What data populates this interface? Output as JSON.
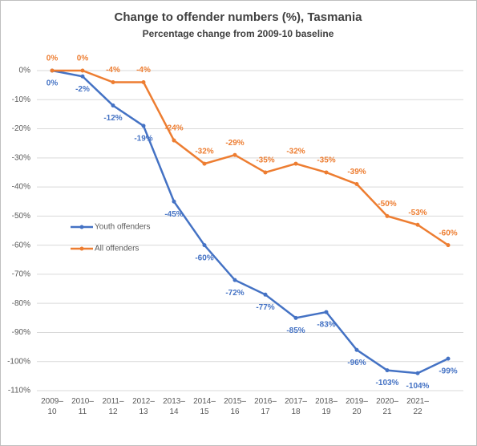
{
  "chart_data": {
    "type": "line",
    "title": "Change to offender numbers (%), Tasmania",
    "subtitle": "Percentage change from 2009-10 baseline",
    "categories": [
      "2009–10",
      "2010–11",
      "2011–12",
      "2012–13",
      "2013–14",
      "2014–15",
      "2015–16",
      "2016–17",
      "2017–18",
      "2018–19",
      "2019–20",
      "2020–21",
      "2021–22",
      null
    ],
    "series": [
      {
        "name": "Youth offenders",
        "color": "#4472c4",
        "values": [
          0,
          -2,
          -12,
          -19,
          -45,
          -60,
          -72,
          -77,
          -85,
          -83,
          -96,
          -103,
          -104,
          -99
        ],
        "value_labels": [
          "0%",
          "-2%",
          "-12%",
          "-19%",
          "-45%",
          "-60%",
          "-72%",
          "-77%",
          "-85%",
          "-83%",
          "-96%",
          "-103%",
          "-104%",
          "-99%"
        ]
      },
      {
        "name": "All offenders",
        "color": "#ed7d31",
        "values": [
          0,
          0,
          -4,
          -4,
          -24,
          -32,
          -29,
          -35,
          -32,
          -35,
          -39,
          -50,
          -53,
          -60
        ],
        "value_labels": [
          "0%",
          "0%",
          "-4%",
          "-4%",
          "-24%",
          "-32%",
          "-29%",
          "-35%",
          "-32%",
          "-35%",
          "-39%",
          "-50%",
          "-53%",
          "-60%"
        ]
      }
    ],
    "ylim": [
      -110,
      0
    ],
    "yticks": [
      {
        "value": 0,
        "label": "0%"
      },
      {
        "value": -10,
        "label": "-10%"
      },
      {
        "value": -20,
        "label": "-20%"
      },
      {
        "value": -30,
        "label": "-30%"
      },
      {
        "value": -40,
        "label": "-40%"
      },
      {
        "value": -50,
        "label": "-50%"
      },
      {
        "value": -60,
        "label": "-60%"
      },
      {
        "value": -70,
        "label": "-70%"
      },
      {
        "value": -80,
        "label": "-80%"
      },
      {
        "value": -90,
        "label": "-90%"
      },
      {
        "value": -100,
        "label": "-100%"
      },
      {
        "value": -110,
        "label": "-110%"
      }
    ],
    "grid": true
  }
}
